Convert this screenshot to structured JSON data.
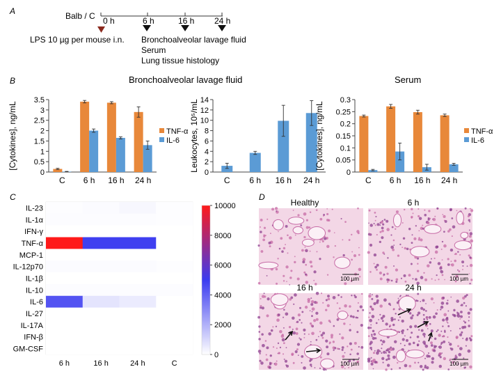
{
  "panels": {
    "A": "A",
    "B": "B",
    "C": "C",
    "D": "D"
  },
  "timeline": {
    "strain": "Balb / C",
    "timepoints": [
      "0 h",
      "6 h",
      "16 h",
      "24 h"
    ],
    "injection": "LPS 10 µg per mouse i.n.",
    "samples": [
      "Bronchoalveolar lavage fluid",
      "Serum",
      "Lung tissue histology"
    ]
  },
  "section_titles": {
    "balf": "Bronchoalveolar lavage fluid",
    "serum": "Serum"
  },
  "colors": {
    "tnf": "#e8883a",
    "il6": "#5b9bd5",
    "leuk": "#5b9bd5",
    "triangle_red": "#8b2a1e",
    "triangle_black": "#111111",
    "heat_high": "#ff1a1a",
    "heat_mid": "#3b3bf0",
    "heat_low": "#ffffff",
    "tissue_bg": "#f3d7e6",
    "tissue_stain": "#c76ba6",
    "tissue_dense": "#8d3f8f"
  },
  "chart_data": [
    {
      "id": "balf_cytokines",
      "type": "bar",
      "categories": [
        "C",
        "6 h",
        "16 h",
        "24 h"
      ],
      "series": [
        {
          "name": "TNF-α",
          "values": [
            0.15,
            3.4,
            3.35,
            2.9
          ],
          "errors": [
            0.03,
            0.06,
            0.05,
            0.25
          ]
        },
        {
          "name": "IL-6",
          "values": [
            0.02,
            2.0,
            1.65,
            1.3
          ],
          "errors": [
            0.01,
            0.08,
            0.05,
            0.2
          ]
        }
      ],
      "ylabel": "[Cytokines], ng/mL",
      "ylim": [
        0,
        3.5
      ],
      "yticks": [
        "0",
        "0.5",
        "1",
        "1.5",
        "2",
        "2.5",
        "3",
        "3.5"
      ],
      "legend": "right"
    },
    {
      "id": "balf_leukocytes",
      "type": "bar",
      "categories": [
        "C",
        "6 h",
        "16 h",
        "24 h"
      ],
      "series": [
        {
          "name": "Leukocytes",
          "values": [
            1.2,
            3.7,
            9.9,
            11.4
          ],
          "errors": [
            0.5,
            0.3,
            3.0,
            2.4
          ]
        }
      ],
      "ylabel": "Leukocytes, 10⁵/mL",
      "ylim": [
        0,
        14
      ],
      "yticks": [
        "0",
        "2",
        "4",
        "6",
        "8",
        "10",
        "12",
        "14"
      ]
    },
    {
      "id": "serum_cytokines",
      "type": "bar",
      "categories": [
        "C",
        "6 h",
        "16 h",
        "24 h"
      ],
      "series": [
        {
          "name": "TNF-α",
          "values": [
            0.232,
            0.272,
            0.248,
            0.235
          ],
          "errors": [
            0.004,
            0.008,
            0.008,
            0.005
          ]
        },
        {
          "name": "IL-6",
          "values": [
            0.008,
            0.085,
            0.02,
            0.032
          ],
          "errors": [
            0.003,
            0.035,
            0.012,
            0.004
          ]
        }
      ],
      "ylabel": "[Cytokines], ng/mL",
      "ylim": [
        0,
        0.3
      ],
      "yticks": [
        "0",
        "0.05",
        "0.1",
        "0.15",
        "0.2",
        "0.25",
        "0.3"
      ],
      "legend": "right"
    },
    {
      "id": "heatmap",
      "type": "heatmap",
      "rows": [
        "IL-23",
        "IL-1α",
        "IFN-γ",
        "TNF-α",
        "MCP-1",
        "IL-12p70",
        "IL-1β",
        "IL-10",
        "IL-6",
        "IL-27",
        "IL-17A",
        "IFN-β",
        "GM-CSF"
      ],
      "columns": [
        "6 h",
        "16 h",
        "24 h",
        "C"
      ],
      "values": [
        [
          50,
          100,
          200,
          50
        ],
        [
          80,
          80,
          80,
          40
        ],
        [
          0,
          0,
          0,
          0
        ],
        [
          10000,
          4900,
          4900,
          0
        ],
        [
          0,
          0,
          0,
          0
        ],
        [
          100,
          100,
          100,
          50
        ],
        [
          0,
          0,
          0,
          0
        ],
        [
          80,
          80,
          80,
          80
        ],
        [
          4400,
          700,
          500,
          0
        ],
        [
          0,
          0,
          0,
          0
        ],
        [
          0,
          0,
          0,
          0
        ],
        [
          0,
          0,
          0,
          0
        ],
        [
          0,
          0,
          0,
          0
        ]
      ],
      "colorbar": {
        "min": 0,
        "max": 10000,
        "ticks": [
          "0",
          "2000",
          "4000",
          "6000",
          "8000",
          "10000"
        ]
      }
    }
  ],
  "histology": {
    "panels": [
      {
        "title": "Healthy",
        "scale": "100 µm"
      },
      {
        "title": "6 h",
        "scale": "100 µm"
      },
      {
        "title": "16 h",
        "scale": "100 µm"
      },
      {
        "title": "24 h",
        "scale": "100 µm"
      }
    ]
  }
}
